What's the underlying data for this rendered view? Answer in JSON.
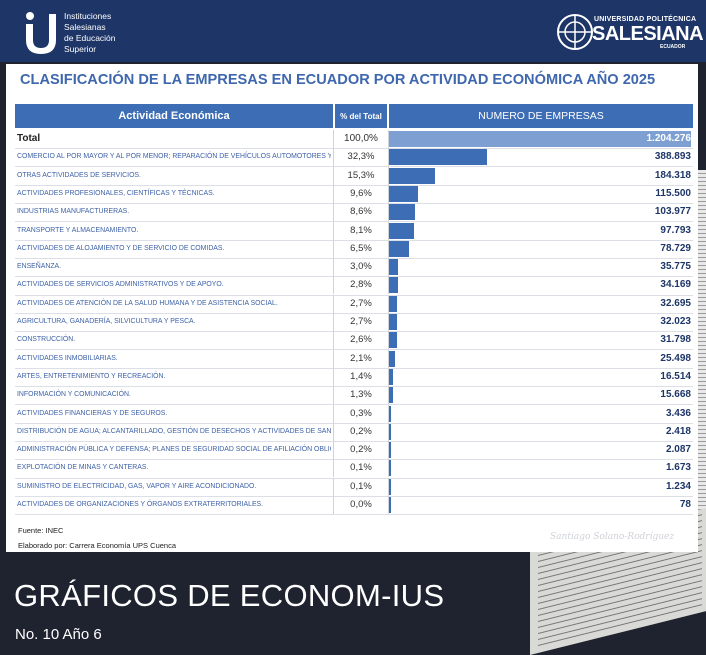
{
  "header": {
    "institution_lines": [
      "Instituciones",
      "Salesianas",
      "de Educación",
      "Superior"
    ],
    "university_small": "UNIVERSIDAD POLITÉCNICA",
    "university_big": "SALESIANA",
    "university_country": "ECUADOR"
  },
  "chart_data": {
    "type": "table",
    "title": "CLASIFICACIÓN DE LA EMPRESAS EN ECUADOR POR ACTIVIDAD ECONÓMICA AÑO 2025",
    "columns": [
      "Actividad Económica",
      "% del Total",
      "NUMERO DE EMPRESAS"
    ],
    "total": {
      "label": "Total",
      "pct": "100,0%",
      "number": "1.204.276",
      "value": 1204276
    },
    "rows": [
      {
        "label": "COMERCIO AL POR MAYOR Y AL POR MENOR; REPARACIÓN DE VEHÍCULOS AUTOMOTORES Y MOTOCICLETAS.",
        "pct": "32,3%",
        "number": "388.893",
        "value": 388893
      },
      {
        "label": "OTRAS ACTIVIDADES DE SERVICIOS.",
        "pct": "15,3%",
        "number": "184.318",
        "value": 184318
      },
      {
        "label": "ACTIVIDADES PROFESIONALES, CIENTÍFICAS Y TÉCNICAS.",
        "pct": "9,6%",
        "number": "115.500",
        "value": 115500
      },
      {
        "label": "INDUSTRIAS MANUFACTURERAS.",
        "pct": "8,6%",
        "number": "103.977",
        "value": 103977
      },
      {
        "label": "TRANSPORTE Y ALMACENAMIENTO.",
        "pct": "8,1%",
        "number": "97.793",
        "value": 97793
      },
      {
        "label": "ACTIVIDADES DE ALOJAMIENTO Y DE SERVICIO DE COMIDAS.",
        "pct": "6,5%",
        "number": "78.729",
        "value": 78729
      },
      {
        "label": "ENSEÑANZA.",
        "pct": "3,0%",
        "number": "35.775",
        "value": 35775
      },
      {
        "label": "ACTIVIDADES DE SERVICIOS ADMINISTRATIVOS Y DE APOYO.",
        "pct": "2,8%",
        "number": "34.169",
        "value": 34169
      },
      {
        "label": "ACTIVIDADES DE ATENCIÓN DE LA SALUD HUMANA Y DE ASISTENCIA SOCIAL.",
        "pct": "2,7%",
        "number": "32.695",
        "value": 32695
      },
      {
        "label": "AGRICULTURA, GANADERÍA,  SILVICULTURA Y PESCA.",
        "pct": "2,7%",
        "number": "32.023",
        "value": 32023
      },
      {
        "label": "CONSTRUCCIÓN.",
        "pct": "2,6%",
        "number": "31.798",
        "value": 31798
      },
      {
        "label": "ACTIVIDADES INMOBILIARIAS.",
        "pct": "2,1%",
        "number": "25.498",
        "value": 25498
      },
      {
        "label": "ARTES, ENTRETENIMIENTO Y RECREACIÓN.",
        "pct": "1,4%",
        "number": "16.514",
        "value": 16514
      },
      {
        "label": "INFORMACIÓN Y COMUNICACIÓN.",
        "pct": "1,3%",
        "number": "15.668",
        "value": 15668
      },
      {
        "label": "ACTIVIDADES FINANCIERAS Y DE SEGUROS.",
        "pct": "0,3%",
        "number": "3.436",
        "value": 3436
      },
      {
        "label": "DISTRIBUCIÓN DE AGUA; ALCANTARILLADO, GESTIÓN DE DESECHOS Y ACTIVIDADES DE SANEAMIENTO.",
        "pct": "0,2%",
        "number": "2.418",
        "value": 2418
      },
      {
        "label": "ADMINISTRACIÓN PÚBLICA Y DEFENSA; PLANES DE SEGURIDAD SOCIAL DE AFILIACIÓN OBLIGATORIA.",
        "pct": "0,2%",
        "number": "2.087",
        "value": 2087
      },
      {
        "label": "EXPLOTACIÓN DE MINAS Y CANTERAS.",
        "pct": "0,1%",
        "number": "1.673",
        "value": 1673
      },
      {
        "label": "SUMINISTRO DE ELECTRICIDAD, GAS, VAPOR Y AIRE ACONDICIONADO.",
        "pct": "0,1%",
        "number": "1.234",
        "value": 1234
      },
      {
        "label": "ACTIVIDADES DE ORGANIZACIONES Y ÓRGANOS EXTRATERRITORIALES.",
        "pct": "0,0%",
        "number": "78",
        "value": 78
      }
    ],
    "source": "Fuente: INEC",
    "prepared_by": "Elaborado por: Carrera Economía UPS Cuenca",
    "signature": "Santiago Solano-Rodríguez"
  },
  "footer": {
    "title": "GRÁFICOS DE ECONOM-IUS",
    "issue": "No. 10 Año 6"
  },
  "colors": {
    "header_bg": "#1d3567",
    "accent_blue": "#3d6db4",
    "total_bar": "#7d9fd1",
    "footer_bg": "#1f2330"
  }
}
